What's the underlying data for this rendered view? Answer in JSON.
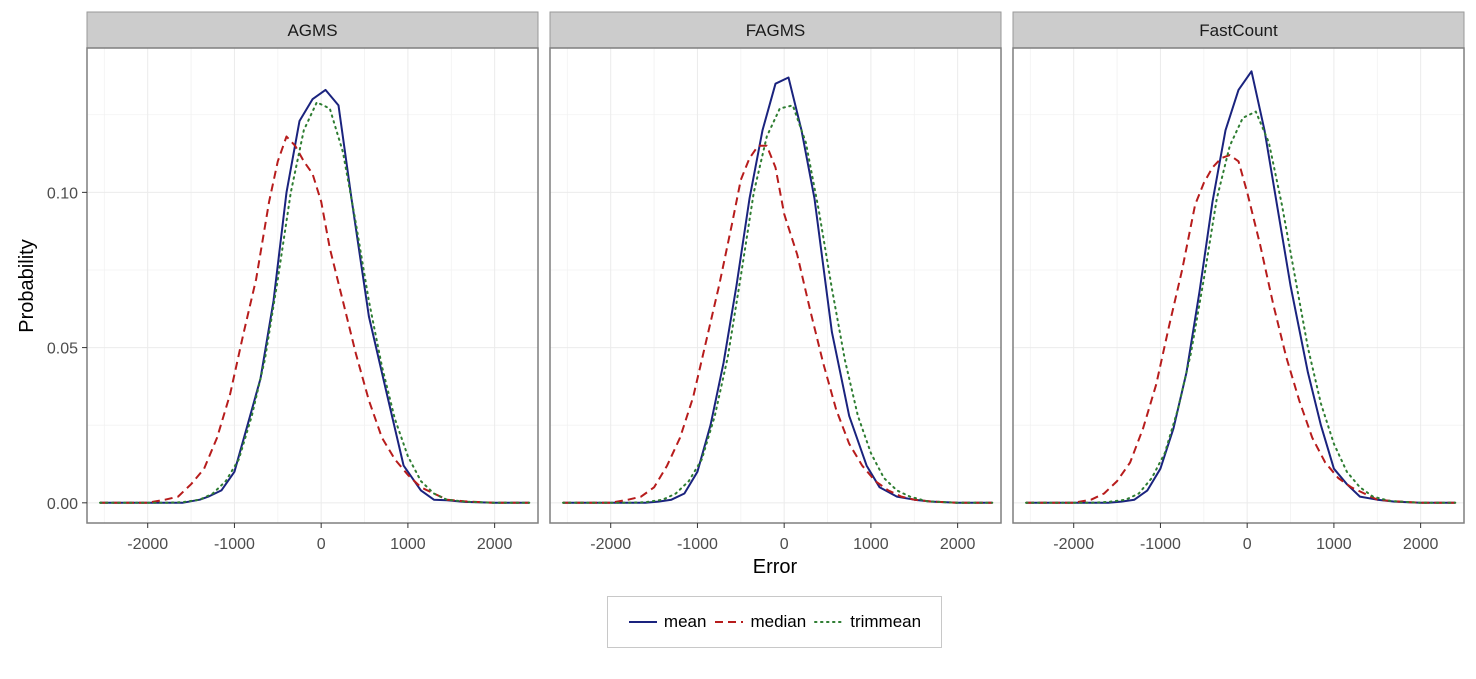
{
  "chart_data": {
    "type": "line",
    "xlabel": "Error",
    "ylabel": "Probability",
    "xlim": [
      -2700,
      2500
    ],
    "ylim": [
      -0.0065,
      0.1465
    ],
    "xticks": [
      -2000,
      -1000,
      0,
      1000,
      2000
    ],
    "xtick_labels": [
      "-2000",
      "-1000",
      "0",
      "1000",
      "2000"
    ],
    "yticks": [
      0.0,
      0.05,
      0.1
    ],
    "ytick_labels": [
      "0.00",
      "0.05",
      "0.10"
    ],
    "grid": true,
    "legend_position": "bottom",
    "series_styles": [
      {
        "name": "mean",
        "color": "#1a237e",
        "dash": "solid"
      },
      {
        "name": "median",
        "color": "#b71c1c",
        "dash": "dashed"
      },
      {
        "name": "trimmean",
        "color": "#2e7d32",
        "dash": "dotted"
      }
    ],
    "panels": [
      {
        "title": "AGMS",
        "series": [
          {
            "name": "mean",
            "x": [
              -2550,
              -2000,
              -1800,
              -1600,
              -1400,
              -1300,
              -1150,
              -1000,
              -850,
              -700,
              -550,
              -400,
              -250,
              -100,
              50,
              200,
              350,
              550,
              750,
              950,
              1150,
              1300,
              1450,
              1650,
              2000,
              2400
            ],
            "y": [
              0.0,
              0.0,
              0.0,
              0.0,
              0.001,
              0.002,
              0.004,
              0.01,
              0.025,
              0.04,
              0.065,
              0.1,
              0.123,
              0.13,
              0.133,
              0.128,
              0.098,
              0.06,
              0.036,
              0.012,
              0.004,
              0.001,
              0.0008,
              0.0003,
              0.0,
              0.0
            ]
          },
          {
            "name": "median",
            "x": [
              -2550,
              -2000,
              -1800,
              -1650,
              -1500,
              -1350,
              -1200,
              -1050,
              -900,
              -750,
              -600,
              -500,
              -400,
              -300,
              -200,
              -100,
              0,
              100,
              250,
              400,
              550,
              700,
              850,
              1000,
              1150,
              1300,
              1450,
              1650,
              2000,
              2400
            ],
            "y": [
              0.0,
              0.0,
              0.001,
              0.002,
              0.006,
              0.011,
              0.021,
              0.035,
              0.054,
              0.072,
              0.097,
              0.11,
              0.118,
              0.115,
              0.11,
              0.106,
              0.097,
              0.082,
              0.065,
              0.048,
              0.033,
              0.021,
              0.014,
              0.009,
              0.005,
              0.003,
              0.001,
              0.0005,
              0.0,
              0.0
            ]
          },
          {
            "name": "trimmean",
            "x": [
              -2550,
              -2000,
              -1800,
              -1600,
              -1400,
              -1250,
              -1100,
              -950,
              -800,
              -650,
              -500,
              -350,
              -200,
              -50,
              100,
              250,
              400,
              550,
              700,
              850,
              1000,
              1150,
              1300,
              1450,
              1650,
              2000,
              2400
            ],
            "y": [
              0.0,
              0.0,
              0.0,
              0.0002,
              0.001,
              0.003,
              0.007,
              0.014,
              0.028,
              0.046,
              0.072,
              0.1,
              0.12,
              0.129,
              0.127,
              0.113,
              0.09,
              0.065,
              0.044,
              0.027,
              0.015,
              0.007,
              0.003,
              0.001,
              0.0004,
              0.0,
              0.0
            ]
          }
        ]
      },
      {
        "title": "FAGMS",
        "series": [
          {
            "name": "mean",
            "x": [
              -2550,
              -2000,
              -1800,
              -1600,
              -1450,
              -1300,
              -1150,
              -1000,
              -850,
              -700,
              -550,
              -400,
              -250,
              -100,
              50,
              200,
              350,
              550,
              750,
              950,
              1100,
              1300,
              1500,
              1700,
              2000,
              2400
            ],
            "y": [
              0.0,
              0.0,
              0.0,
              0.0,
              0.0004,
              0.001,
              0.003,
              0.01,
              0.025,
              0.045,
              0.07,
              0.098,
              0.12,
              0.135,
              0.137,
              0.12,
              0.098,
              0.055,
              0.028,
              0.012,
              0.005,
              0.002,
              0.001,
              0.0004,
              0.0,
              0.0
            ]
          },
          {
            "name": "median",
            "x": [
              -2550,
              -2000,
              -1800,
              -1650,
              -1500,
              -1350,
              -1200,
              -1050,
              -900,
              -750,
              -600,
              -500,
              -400,
              -300,
              -200,
              -100,
              0,
              150,
              300,
              450,
              600,
              750,
              900,
              1050,
              1200,
              1350,
              1500,
              1700,
              2000,
              2400
            ],
            "y": [
              0.0,
              0.0,
              0.001,
              0.002,
              0.005,
              0.012,
              0.021,
              0.034,
              0.052,
              0.07,
              0.09,
              0.104,
              0.111,
              0.115,
              0.115,
              0.108,
              0.093,
              0.08,
              0.062,
              0.045,
              0.03,
              0.019,
              0.012,
              0.007,
              0.004,
              0.002,
              0.001,
              0.0004,
              0.0,
              0.0
            ]
          },
          {
            "name": "trimmean",
            "x": [
              -2550,
              -2000,
              -1800,
              -1600,
              -1400,
              -1250,
              -1100,
              -950,
              -800,
              -650,
              -500,
              -350,
              -200,
              -50,
              100,
              250,
              400,
              550,
              700,
              850,
              1000,
              1150,
              1300,
              1450,
              1650,
              2000,
              2400
            ],
            "y": [
              0.0,
              0.0,
              0.0,
              0.0002,
              0.001,
              0.003,
              0.007,
              0.014,
              0.028,
              0.047,
              0.073,
              0.1,
              0.118,
              0.127,
              0.128,
              0.116,
              0.094,
              0.069,
              0.046,
              0.028,
              0.016,
              0.008,
              0.004,
              0.002,
              0.0005,
              0.0,
              0.0
            ]
          }
        ]
      },
      {
        "title": "FastCount",
        "series": [
          {
            "name": "mean",
            "x": [
              -2550,
              -2000,
              -1800,
              -1600,
              -1450,
              -1300,
              -1150,
              -1000,
              -850,
              -700,
              -550,
              -400,
              -250,
              -100,
              50,
              200,
              350,
              500,
              700,
              850,
              1000,
              1150,
              1300,
              1500,
              1700,
              2000,
              2400
            ],
            "y": [
              0.0,
              0.0,
              0.0,
              0.0,
              0.0004,
              0.001,
              0.004,
              0.011,
              0.024,
              0.042,
              0.068,
              0.097,
              0.12,
              0.133,
              0.139,
              0.12,
              0.095,
              0.07,
              0.042,
              0.025,
              0.011,
              0.006,
              0.002,
              0.001,
              0.0004,
              0.0,
              0.0
            ]
          },
          {
            "name": "median",
            "x": [
              -2550,
              -2000,
              -1800,
              -1650,
              -1500,
              -1350,
              -1200,
              -1050,
              -900,
              -750,
              -600,
              -500,
              -400,
              -300,
              -200,
              -100,
              0,
              150,
              300,
              450,
              600,
              750,
              900,
              1050,
              1200,
              1350,
              1500,
              1700,
              2000,
              2400
            ],
            "y": [
              0.0,
              0.0,
              0.001,
              0.003,
              0.007,
              0.013,
              0.024,
              0.038,
              0.057,
              0.075,
              0.096,
              0.103,
              0.108,
              0.111,
              0.112,
              0.11,
              0.1,
              0.083,
              0.064,
              0.047,
              0.033,
              0.021,
              0.013,
              0.008,
              0.005,
              0.003,
              0.001,
              0.0005,
              0.0,
              0.0
            ]
          },
          {
            "name": "trimmean",
            "x": [
              -2550,
              -2000,
              -1800,
              -1600,
              -1400,
              -1250,
              -1100,
              -950,
              -800,
              -650,
              -500,
              -350,
              -200,
              -50,
              100,
              250,
              400,
              550,
              700,
              850,
              1000,
              1150,
              1300,
              1450,
              1650,
              2000,
              2400
            ],
            "y": [
              0.0,
              0.0,
              0.0,
              0.0003,
              0.001,
              0.003,
              0.008,
              0.016,
              0.03,
              0.048,
              0.072,
              0.098,
              0.115,
              0.124,
              0.126,
              0.116,
              0.096,
              0.073,
              0.05,
              0.032,
              0.019,
              0.01,
              0.005,
              0.002,
              0.0006,
              0.0,
              0.0
            ]
          }
        ]
      }
    ]
  },
  "legend": {
    "items": [
      {
        "key": "mean",
        "label": "mean"
      },
      {
        "key": "median",
        "label": "median"
      },
      {
        "key": "trimmean",
        "label": "trimmean"
      }
    ]
  }
}
